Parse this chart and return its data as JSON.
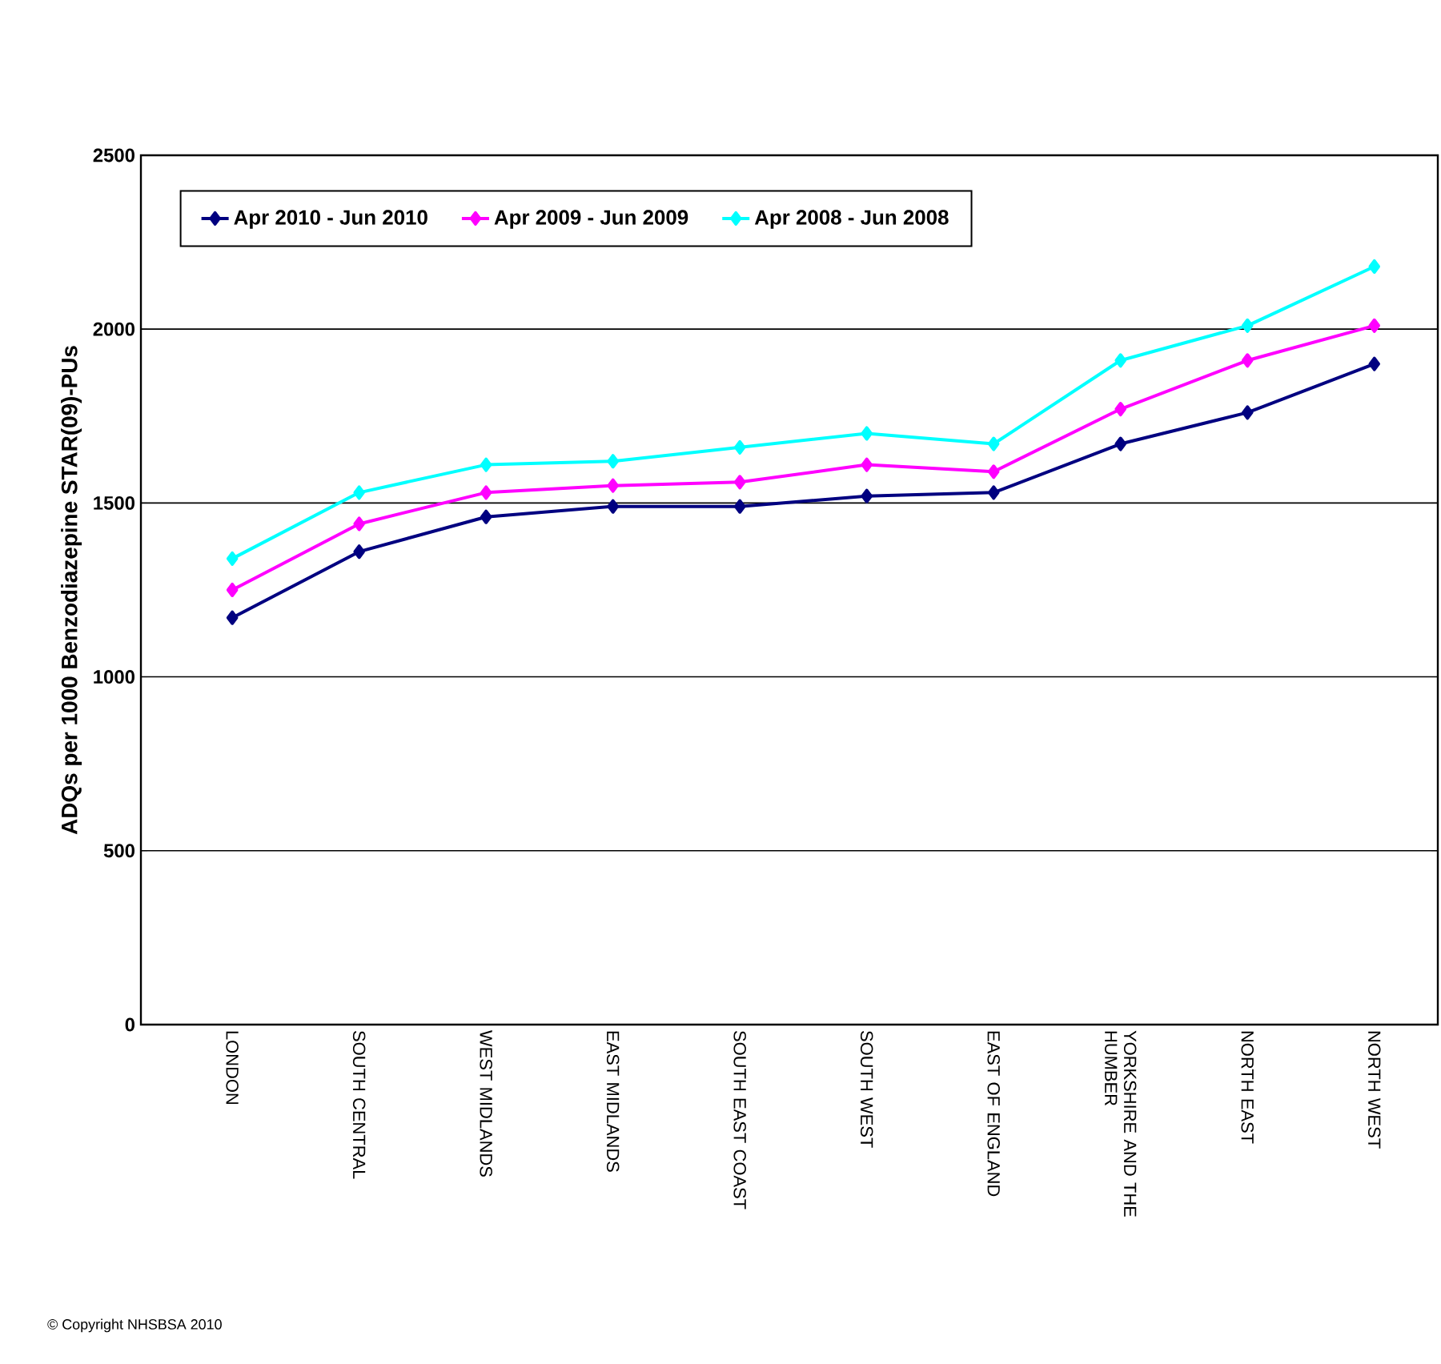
{
  "chart_data": {
    "type": "line",
    "ylabel": "ADQs per 1000 Benzodiazepine STAR(09)-PUs",
    "categories": [
      "LONDON",
      "SOUTH CENTRAL",
      "WEST MIDLANDS",
      "EAST MIDLANDS",
      "SOUTH EAST COAST",
      "SOUTH WEST",
      "EAST OF ENGLAND",
      "YORKSHIRE AND THE HUMBER",
      "NORTH EAST",
      "NORTH WEST"
    ],
    "series": [
      {
        "name": "Apr 2010 - Jun 2010",
        "color": "#000080",
        "values": [
          1170,
          1360,
          1460,
          1490,
          1490,
          1520,
          1530,
          1670,
          1760,
          1900
        ]
      },
      {
        "name": "Apr 2009 - Jun 2009",
        "color": "#ff00ff",
        "values": [
          1250,
          1440,
          1530,
          1550,
          1560,
          1610,
          1590,
          1770,
          1910,
          2010
        ]
      },
      {
        "name": "Apr 2008 - Jun 2008",
        "color": "#00ffff",
        "values": [
          1340,
          1530,
          1610,
          1620,
          1660,
          1700,
          1670,
          1910,
          2010,
          2180
        ]
      }
    ],
    "ylim": [
      0,
      2500
    ],
    "yticks": [
      0,
      500,
      1000,
      1500,
      2000,
      2500
    ],
    "grid": "y",
    "legend": "top left",
    "marker": "diamond",
    "line_style": "solid",
    "annotations": [
      "© Copyright NHSBSA 2010"
    ]
  }
}
